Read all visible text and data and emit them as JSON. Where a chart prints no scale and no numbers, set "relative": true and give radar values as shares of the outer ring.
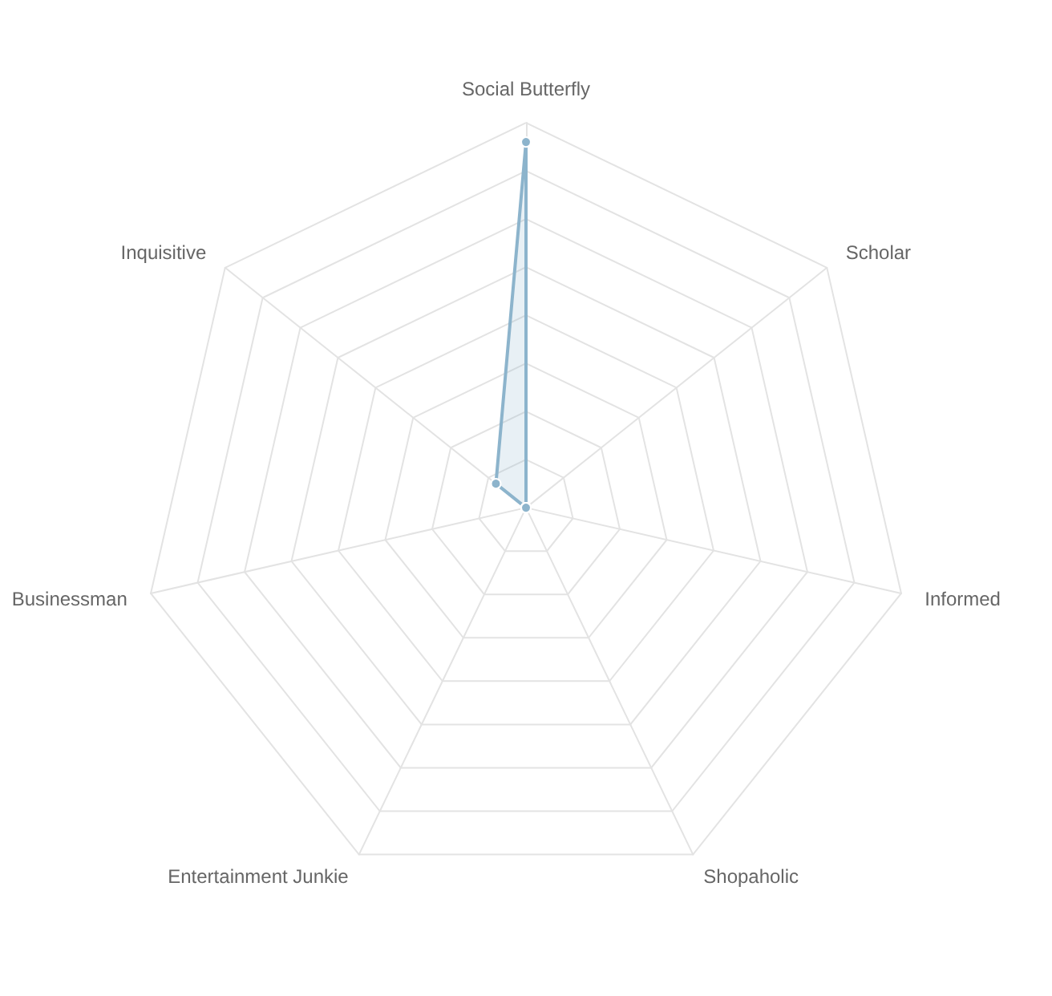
{
  "chart_data": {
    "type": "radar",
    "relative": true,
    "grid": true,
    "marker": "circle",
    "categories": [
      "Social Butterfly",
      "Scholar",
      "Informed",
      "Shopaholic",
      "Entertainment Junkie",
      "Businessman",
      "Inquisitive"
    ],
    "series": [
      {
        "color": "#8db4cc",
        "values": [
          0.95,
          0,
          0,
          0,
          0,
          0,
          0.1
        ]
      }
    ]
  }
}
